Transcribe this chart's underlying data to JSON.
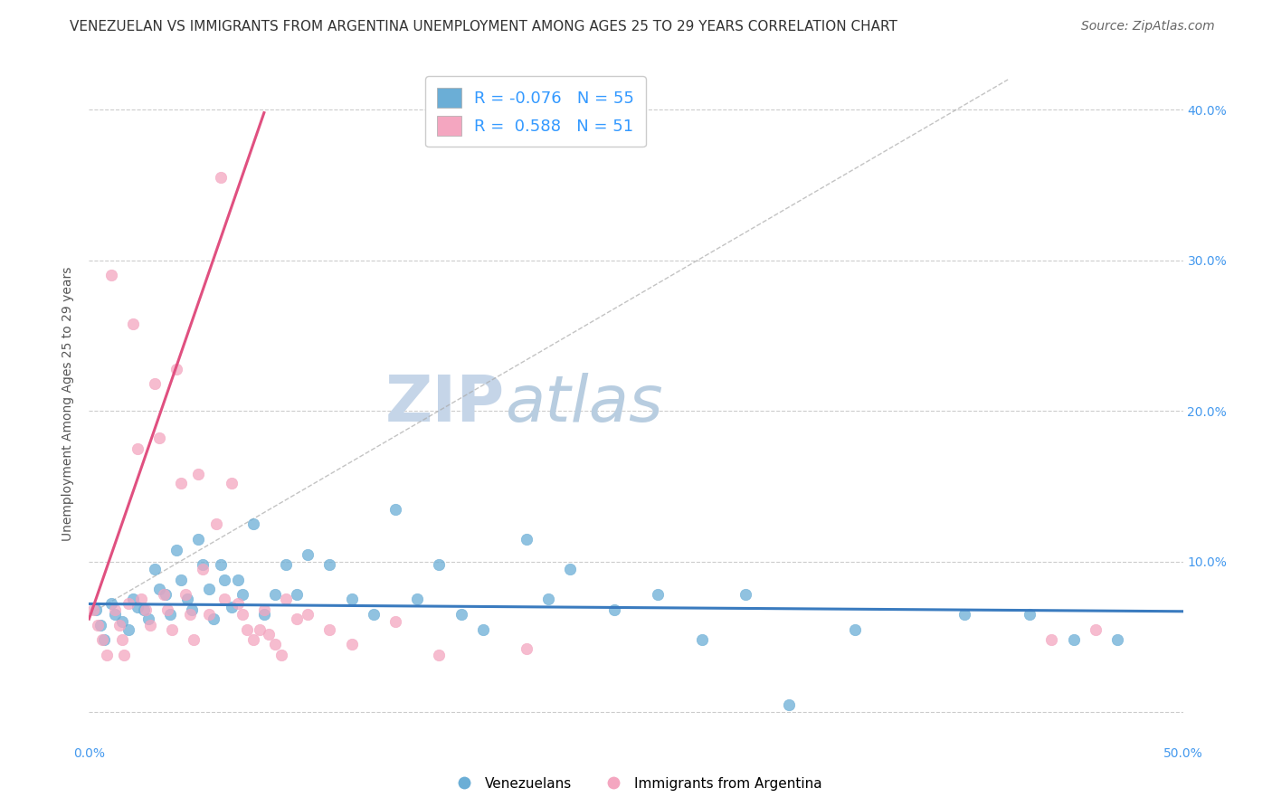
{
  "title": "VENEZUELAN VS IMMIGRANTS FROM ARGENTINA UNEMPLOYMENT AMONG AGES 25 TO 29 YEARS CORRELATION CHART",
  "source": "Source: ZipAtlas.com",
  "ylabel": "Unemployment Among Ages 25 to 29 years",
  "xlim": [
    0.0,
    0.5
  ],
  "ylim": [
    -0.02,
    0.43
  ],
  "y_ticks": [
    0.0,
    0.1,
    0.2,
    0.3,
    0.4
  ],
  "y_tick_labels": [
    "",
    "10.0%",
    "20.0%",
    "30.0%",
    "40.0%"
  ],
  "x_ticks": [
    0.0,
    0.1,
    0.2,
    0.3,
    0.4,
    0.5
  ],
  "x_tick_labels": [
    "0.0%",
    "",
    "",
    "",
    "",
    "50.0%"
  ],
  "watermark_zip": "ZIP",
  "watermark_atlas": "atlas",
  "blue_R": -0.076,
  "blue_N": 55,
  "pink_R": 0.588,
  "pink_N": 51,
  "blue_color": "#6baed6",
  "pink_color": "#f4a6c0",
  "blue_line_color": "#3a7bbf",
  "pink_line_color": "#e05080",
  "blue_scatter": {
    "x": [
      0.003,
      0.005,
      0.007,
      0.01,
      0.012,
      0.015,
      0.018,
      0.02,
      0.022,
      0.025,
      0.027,
      0.03,
      0.032,
      0.035,
      0.037,
      0.04,
      0.042,
      0.045,
      0.047,
      0.05,
      0.052,
      0.055,
      0.057,
      0.06,
      0.062,
      0.065,
      0.068,
      0.07,
      0.075,
      0.08,
      0.085,
      0.09,
      0.095,
      0.1,
      0.11,
      0.12,
      0.13,
      0.14,
      0.15,
      0.16,
      0.17,
      0.18,
      0.2,
      0.21,
      0.22,
      0.24,
      0.26,
      0.28,
      0.3,
      0.32,
      0.35,
      0.4,
      0.43,
      0.45,
      0.47
    ],
    "y": [
      0.068,
      0.058,
      0.048,
      0.072,
      0.065,
      0.06,
      0.055,
      0.075,
      0.07,
      0.068,
      0.062,
      0.095,
      0.082,
      0.078,
      0.065,
      0.108,
      0.088,
      0.075,
      0.068,
      0.115,
      0.098,
      0.082,
      0.062,
      0.098,
      0.088,
      0.07,
      0.088,
      0.078,
      0.125,
      0.065,
      0.078,
      0.098,
      0.078,
      0.105,
      0.098,
      0.075,
      0.065,
      0.135,
      0.075,
      0.098,
      0.065,
      0.055,
      0.115,
      0.075,
      0.095,
      0.068,
      0.078,
      0.048,
      0.078,
      0.005,
      0.055,
      0.065,
      0.065,
      0.048,
      0.048
    ]
  },
  "pink_scatter": {
    "x": [
      0.002,
      0.004,
      0.006,
      0.008,
      0.01,
      0.012,
      0.014,
      0.015,
      0.016,
      0.018,
      0.02,
      0.022,
      0.024,
      0.026,
      0.028,
      0.03,
      0.032,
      0.034,
      0.036,
      0.038,
      0.04,
      0.042,
      0.044,
      0.046,
      0.048,
      0.05,
      0.052,
      0.055,
      0.058,
      0.06,
      0.062,
      0.065,
      0.068,
      0.07,
      0.072,
      0.075,
      0.078,
      0.08,
      0.082,
      0.085,
      0.088,
      0.09,
      0.095,
      0.1,
      0.11,
      0.12,
      0.14,
      0.16,
      0.2,
      0.44,
      0.46
    ],
    "y": [
      0.068,
      0.058,
      0.048,
      0.038,
      0.29,
      0.068,
      0.058,
      0.048,
      0.038,
      0.072,
      0.258,
      0.175,
      0.075,
      0.068,
      0.058,
      0.218,
      0.182,
      0.078,
      0.068,
      0.055,
      0.228,
      0.152,
      0.078,
      0.065,
      0.048,
      0.158,
      0.095,
      0.065,
      0.125,
      0.355,
      0.075,
      0.152,
      0.072,
      0.065,
      0.055,
      0.048,
      0.055,
      0.068,
      0.052,
      0.045,
      0.038,
      0.075,
      0.062,
      0.065,
      0.055,
      0.045,
      0.06,
      0.038,
      0.042,
      0.048,
      0.055
    ]
  },
  "background_color": "#ffffff",
  "grid_color": "#cccccc",
  "title_fontsize": 11,
  "source_fontsize": 10,
  "axis_label_fontsize": 10,
  "tick_fontsize": 10,
  "legend_fontsize": 13,
  "watermark_zip_fontsize": 52,
  "watermark_atlas_fontsize": 52
}
